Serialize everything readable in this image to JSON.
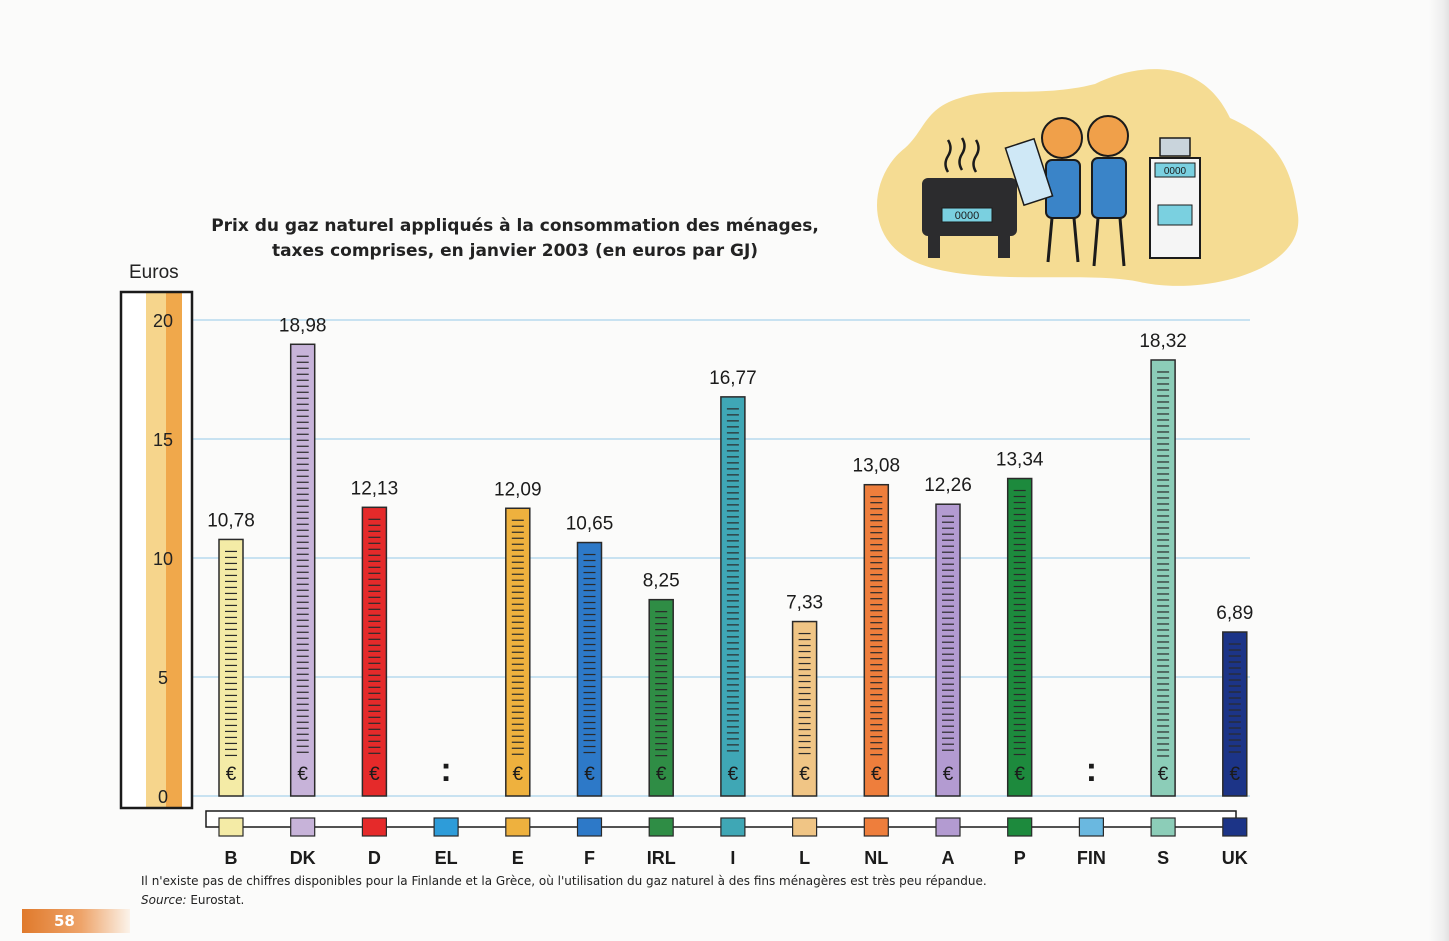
{
  "title_line1": "Prix du gaz naturel appliqués à la consommation des ménages,",
  "title_line2": "taxes comprises, en janvier 2003 (en euros par GJ)",
  "footnote": "Il n'existe pas de chiffres disponibles pour la Finlande et la Grèce, où l'utilisation du gaz naturel à des fins ménagères est très peu répandue.",
  "source_label": "Source:",
  "source_value": " Eurostat.",
  "page_number": "58",
  "colors": {
    "gridline": "#a9d4ec",
    "scale_yellow": "#f6d58c",
    "scale_orange": "#f0a84b",
    "accent_orange": "#e07a2c"
  },
  "chart_data": {
    "type": "bar",
    "ylabel": "Euros",
    "ylim": [
      0,
      20
    ],
    "yticks": [
      "0",
      "5",
      "10",
      "15",
      "20"
    ],
    "grid": true,
    "categories": [
      "B",
      "DK",
      "D",
      "EL",
      "E",
      "F",
      "IRL",
      "I",
      "L",
      "NL",
      "A",
      "P",
      "FIN",
      "S",
      "UK"
    ],
    "values": [
      10.78,
      18.98,
      12.13,
      null,
      12.09,
      10.65,
      8.25,
      16.77,
      7.33,
      13.08,
      12.26,
      13.34,
      null,
      18.32,
      6.89
    ],
    "value_labels": [
      "10,78",
      "18,98",
      "12,13",
      ":",
      "12,09",
      "10,65",
      "8,25",
      "16,77",
      "7,33",
      "13,08",
      "12,26",
      "13,34",
      ":",
      "18,32",
      "6,89"
    ],
    "bar_colors": [
      "#f4eba6",
      "#c7b3d9",
      "#e52a2a",
      "#2e9cd9",
      "#eeb13e",
      "#2d79c8",
      "#2f8d45",
      "#3fa7b5",
      "#f0c585",
      "#ee7e3c",
      "#b39bd1",
      "#1d8a3d",
      "#6ab8e0",
      "#8ccdb8",
      "#1c3487"
    ],
    "bar_marker": "€"
  }
}
